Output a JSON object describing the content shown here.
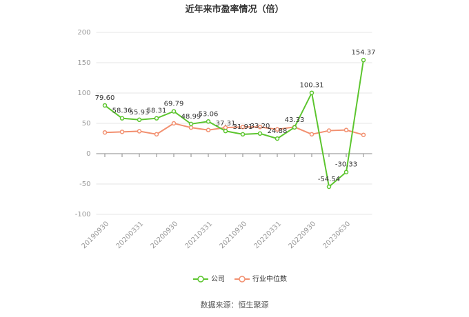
{
  "chart_data": {
    "type": "line",
    "title": "近年来市盈率情况（倍）",
    "categories": [
      "20190930",
      null,
      "20200331",
      null,
      "20200930",
      null,
      "20210331",
      null,
      "20210930",
      null,
      "20220331",
      null,
      "20220930",
      null,
      "20230630",
      null
    ],
    "series": [
      {
        "name": "公司",
        "color": "#5cc52e",
        "values": [
          79.6,
          58.36,
          55.93,
          58.31,
          69.79,
          48.99,
          53.06,
          37.31,
          31.91,
          33.2,
          24.88,
          43.33,
          100.31,
          -54.54,
          -30.33,
          154.37
        ],
        "value_labels": [
          "79.60",
          "58.36",
          "55.93",
          "58.31",
          "69.79",
          "48.99",
          "53.06",
          "37.31",
          "31.91",
          "33.20",
          "24.88",
          "43.33",
          "100.31",
          "-54.54",
          "-30.33",
          "154.37"
        ]
      },
      {
        "name": "行业中位数",
        "color": "#f29070",
        "values": [
          35,
          36,
          37,
          32,
          50,
          43,
          39,
          43,
          44,
          44,
          40,
          44,
          32,
          38,
          39,
          31
        ]
      }
    ],
    "ylim": [
      -100,
      200
    ],
    "yticks": [
      -100,
      -50,
      0,
      50,
      100,
      150,
      200
    ],
    "grid": true,
    "legend": "bottom",
    "source": "数据来源：恒生聚源"
  }
}
